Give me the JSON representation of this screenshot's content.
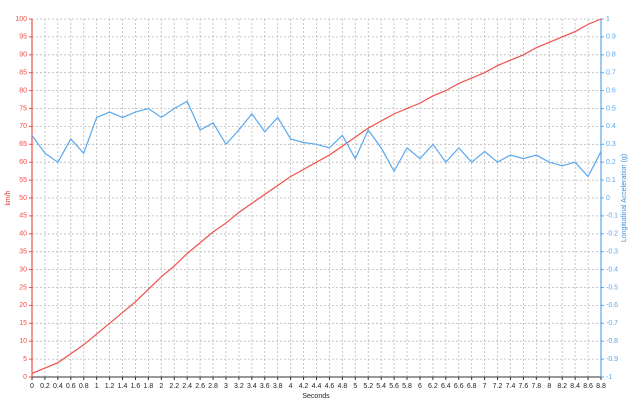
{
  "chart_data": {
    "type": "line",
    "x_label": "Seconds",
    "y_label": "km/h",
    "y2_label": "Longitudinal Acceleration (g)",
    "x": [
      0,
      0.2,
      0.4,
      0.6,
      0.8,
      1,
      1.2,
      1.4,
      1.6,
      1.8,
      2,
      2.2,
      2.4,
      2.6,
      2.8,
      3,
      3.2,
      3.4,
      3.6,
      3.8,
      4,
      4.2,
      4.4,
      4.6,
      4.8,
      5,
      5.2,
      5.4,
      5.6,
      5.8,
      6,
      6.2,
      6.4,
      6.6,
      6.8,
      7,
      7.2,
      7.4,
      7.6,
      7.8,
      8,
      8.2,
      8.4,
      8.6,
      8.8
    ],
    "series": [
      {
        "name": "km/h",
        "color": "#f0504a",
        "axis": "y",
        "values": [
          1,
          2.5,
          4,
          6.5,
          9,
          12,
          15,
          18,
          21,
          24.5,
          28,
          31,
          34.5,
          37.5,
          40.5,
          43,
          46,
          48.5,
          51,
          53.5,
          56,
          58,
          60,
          62,
          64.5,
          67,
          69.5,
          71.5,
          73.5,
          75,
          76.5,
          78.5,
          80,
          82,
          83.5,
          85,
          87,
          88.5,
          90,
          92,
          93.5,
          95,
          96.5,
          98.5,
          100
        ]
      },
      {
        "name": "Longitudinal Acceleration (g)",
        "color": "#5aa8ee",
        "axis": "y2",
        "values": [
          0.35,
          0.25,
          0.2,
          0.33,
          0.25,
          0.45,
          0.48,
          0.45,
          0.48,
          0.5,
          0.45,
          0.5,
          0.54,
          0.38,
          0.42,
          0.3,
          0.38,
          0.47,
          0.37,
          0.45,
          0.33,
          0.31,
          0.3,
          0.28,
          0.35,
          0.22,
          0.38,
          0.28,
          0.15,
          0.28,
          0.22,
          0.3,
          0.2,
          0.28,
          0.2,
          0.26,
          0.2,
          0.24,
          0.22,
          0.24,
          0.2,
          0.18,
          0.2,
          0.12,
          0.26
        ]
      }
    ],
    "xlim": [
      0,
      8.8
    ],
    "xticks": [
      0,
      0.2,
      0.4,
      0.6,
      0.8,
      1,
      1.2,
      1.4,
      1.6,
      1.8,
      2,
      2.2,
      2.4,
      2.6,
      2.8,
      3,
      3.2,
      3.4,
      3.6,
      3.8,
      4,
      4.2,
      4.4,
      4.6,
      4.8,
      5,
      5.2,
      5.4,
      5.6,
      5.8,
      6,
      6.2,
      6.4,
      6.6,
      6.8,
      7,
      7.2,
      7.4,
      7.6,
      7.8,
      8,
      8.2,
      8.4,
      8.6,
      8.8
    ],
    "ylim": [
      0,
      100
    ],
    "yticks": [
      0,
      5,
      10,
      15,
      20,
      25,
      30,
      35,
      40,
      45,
      50,
      55,
      60,
      65,
      70,
      75,
      80,
      85,
      90,
      95,
      100
    ],
    "y2lim": [
      -1,
      1
    ],
    "y2ticks": [
      -1,
      -0.9,
      -0.8,
      -0.7,
      -0.6,
      -0.5,
      -0.4,
      -0.3,
      -0.2,
      -0.1,
      0,
      0.1,
      0.2,
      0.3,
      0.4,
      0.5,
      0.6,
      0.7,
      0.8,
      0.9,
      1
    ],
    "grid": true
  }
}
